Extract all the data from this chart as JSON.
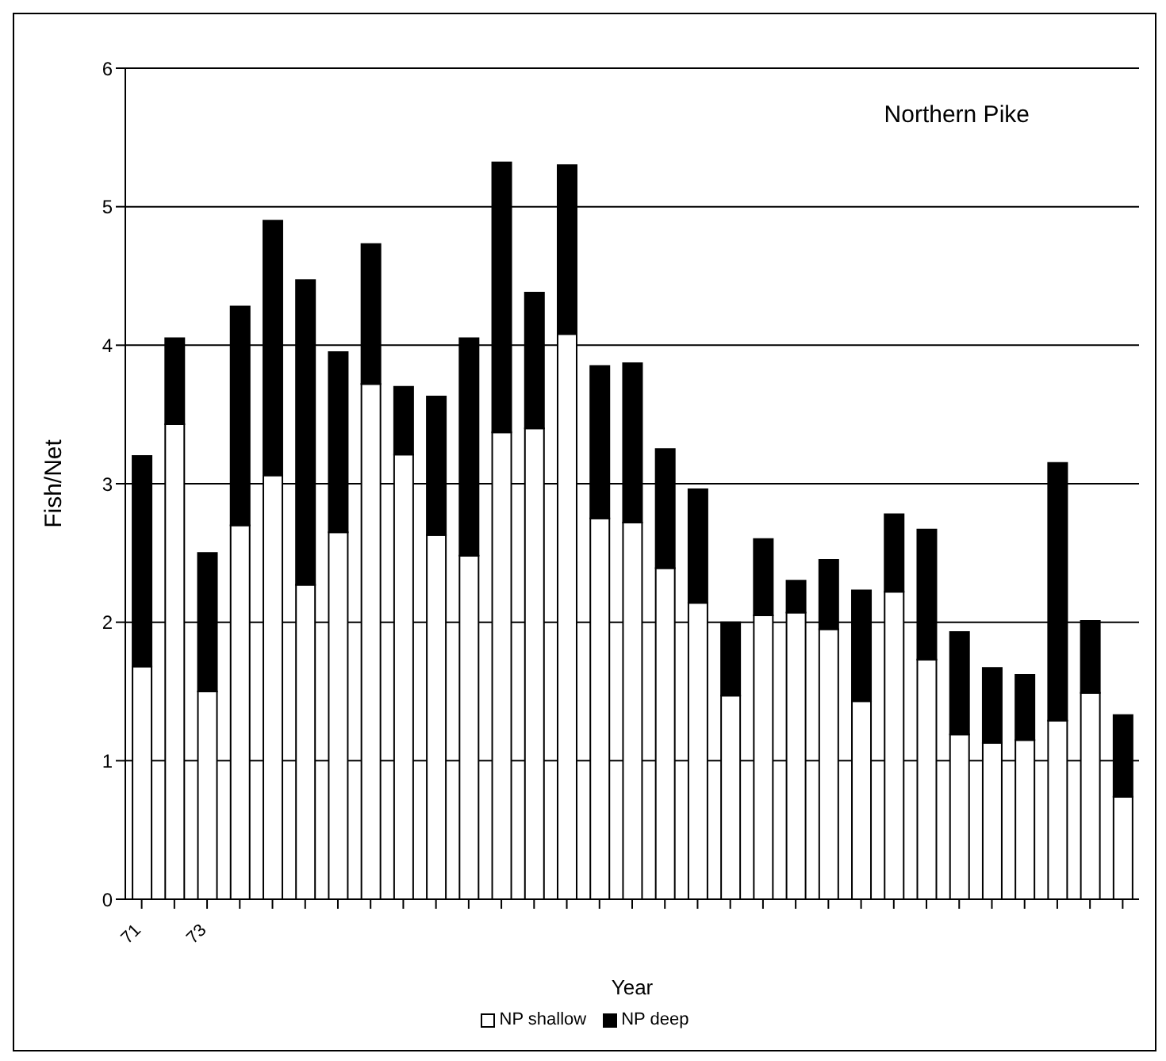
{
  "chart_data": {
    "type": "bar",
    "title": "Northern Pike",
    "xlabel": "Year",
    "ylabel": "Fish/Net",
    "stacked": true,
    "categories": [
      "71",
      null,
      "73",
      null,
      null,
      null,
      null,
      null,
      null,
      null,
      null,
      null,
      null,
      null,
      null,
      null,
      null,
      null,
      null,
      null,
      null,
      null,
      null,
      null,
      null,
      null,
      null,
      null,
      null,
      null,
      null
    ],
    "series": [
      {
        "name": "NP shallow",
        "color": "#ffffff",
        "values": [
          1.68,
          3.43,
          1.5,
          2.7,
          3.06,
          2.27,
          2.65,
          3.72,
          3.21,
          2.63,
          2.48,
          3.37,
          3.4,
          4.08,
          2.75,
          2.72,
          2.39,
          2.14,
          1.47,
          2.05,
          2.07,
          1.95,
          1.43,
          2.22,
          1.73,
          1.19,
          1.13,
          1.15,
          1.29,
          1.49,
          0.74
        ]
      },
      {
        "name": "NP deep",
        "color": "#000000",
        "values": [
          1.52,
          0.62,
          1.0,
          1.58,
          1.84,
          2.2,
          1.3,
          1.01,
          0.49,
          1.0,
          1.57,
          1.95,
          0.98,
          1.22,
          1.1,
          1.15,
          0.86,
          0.82,
          0.53,
          0.55,
          0.23,
          0.5,
          0.8,
          0.56,
          0.94,
          0.74,
          0.54,
          0.47,
          1.86,
          0.52,
          0.59
        ]
      }
    ],
    "ylim": [
      0,
      6
    ],
    "yticks": [
      0,
      1,
      2,
      3,
      4,
      5,
      6
    ],
    "grid": "y",
    "legend": "bottom"
  }
}
